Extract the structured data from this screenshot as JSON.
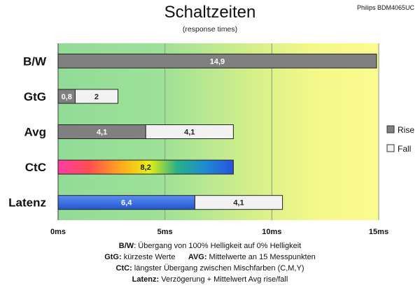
{
  "header": {
    "title": "Schaltzeiten",
    "subtitle": "(response times)",
    "model": "Philips BDM4065UC"
  },
  "legend": {
    "rise": "Rise",
    "fall": "Fall"
  },
  "footer": [
    {
      "key": "B/W",
      "text": ":  Übergang von 100% Helligkeit auf 0% Helligkeit"
    },
    {
      "key": "GtG:",
      "text": " kürzeste  Werte",
      "key2": "AVG:",
      "text2": " Mittelwerte  an 15 Messpunkten"
    },
    {
      "key": "CtC:",
      "text": " längster Übergang  zwischen Mischfarben (C,M,Y)"
    },
    {
      "key": "Latenz:",
      "text": " Verzögerung  + Mittelwert Avg rise/fall"
    }
  ],
  "chart_data": {
    "type": "bar",
    "orientation": "horizontal",
    "stacked": true,
    "title": "Schaltzeiten",
    "subtitle": "(response times)",
    "xlim": [
      0,
      15
    ],
    "xticks": [
      "0ms",
      "5ms",
      "10ms",
      "15ms"
    ],
    "categories": [
      "B/W",
      "GtG",
      "Avg",
      "CtC",
      "Latenz"
    ],
    "series": [
      {
        "name": "Rise",
        "values": [
          14.9,
          0.8,
          4.1,
          8.2,
          6.4
        ],
        "labels": [
          "14,9",
          "0,8",
          "4,1",
          "8,2",
          "6,4"
        ]
      },
      {
        "name": "Fall",
        "values": [
          null,
          2,
          4.1,
          null,
          4.1
        ],
        "labels": [
          "",
          "2",
          "4,1",
          "",
          "4,1"
        ]
      }
    ],
    "colors": {
      "rise": "#808080",
      "fall": "#f2f2f2",
      "latency": "#3a6bdc",
      "background_zones": [
        "#9bdf9b",
        "#d6f089",
        "#fbfb8c"
      ]
    },
    "legend_position": "right"
  }
}
